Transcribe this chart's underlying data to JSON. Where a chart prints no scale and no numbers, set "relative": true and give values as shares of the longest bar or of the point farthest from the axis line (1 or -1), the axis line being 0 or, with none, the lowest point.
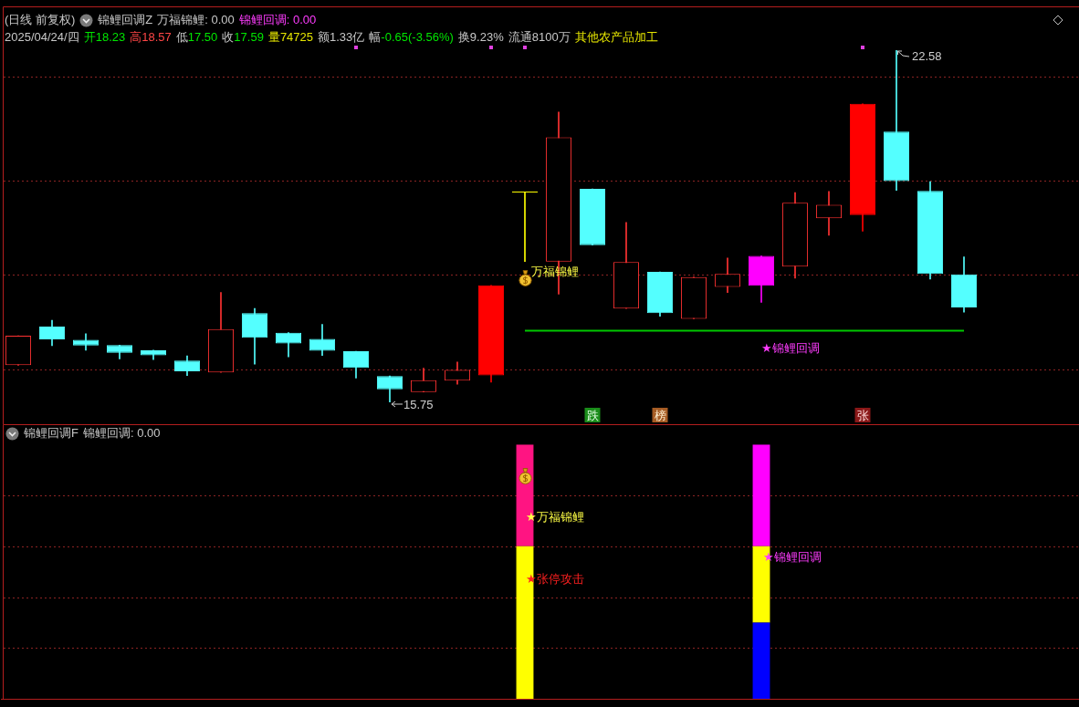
{
  "chart_data": [
    {
      "type": "candlestick",
      "title": "(日线 前复权)",
      "subtitle": "2025/04/24/四 开18.23 高18.57 低17.50 收17.59 量74725 额1.33亿 幅-0.65(-3.56%) 换9.23% 流通8100万 其他农产品加工",
      "categories": [
        null,
        null,
        null,
        null,
        null,
        null,
        null,
        null,
        null,
        null,
        null,
        null,
        null,
        null,
        null,
        null,
        null,
        null,
        null,
        null,
        null,
        null,
        null,
        null,
        null,
        null,
        null,
        null,
        null
      ],
      "ohlc": [
        [
          16.47,
          17.04,
          16.47,
          17.04
        ],
        [
          17.22,
          17.34,
          16.85,
          16.97
        ],
        [
          16.96,
          17.08,
          16.76,
          16.85
        ],
        [
          16.86,
          16.86,
          16.59,
          16.71
        ],
        [
          16.76,
          16.76,
          16.58,
          16.66
        ],
        [
          16.56,
          16.65,
          16.27,
          16.35
        ],
        [
          16.33,
          17.88,
          16.33,
          17.17
        ],
        [
          17.48,
          17.57,
          16.49,
          17.0
        ],
        [
          17.1,
          17.1,
          16.63,
          16.89
        ],
        [
          16.98,
          17.26,
          16.66,
          16.75
        ],
        [
          16.74,
          16.74,
          16.22,
          16.42
        ],
        [
          16.26,
          16.26,
          15.75,
          16.0
        ],
        [
          15.95,
          16.41,
          15.95,
          16.18
        ],
        [
          16.17,
          16.53,
          16.1,
          16.38
        ],
        [
          16.27,
          18.02,
          16.14,
          18.02
        ],
        [
          19.82,
          19.82,
          18.48,
          19.82
        ],
        [
          18.48,
          21.38,
          17.85,
          20.89
        ],
        [
          19.89,
          19.89,
          18.8,
          18.8
        ],
        [
          17.57,
          19.24,
          17.57,
          18.47
        ],
        [
          18.28,
          18.28,
          17.42,
          17.48
        ],
        [
          17.37,
          18.18,
          17.37,
          18.18
        ],
        [
          17.99,
          18.55,
          17.88,
          18.24
        ],
        [
          18.01,
          18.59,
          17.69,
          18.59
        ],
        [
          18.38,
          19.82,
          18.16,
          19.62
        ],
        [
          19.32,
          19.84,
          18.99,
          19.58
        ],
        [
          19.38,
          21.54,
          19.07,
          21.54
        ],
        [
          21.0,
          22.58,
          19.86,
          20.04
        ],
        [
          19.85,
          20.03,
          18.14,
          18.24
        ],
        [
          18.23,
          18.57,
          17.5,
          17.59
        ]
      ],
      "colors": [
        "#ff3232",
        "#54ffff",
        "#54ffff",
        "#54ffff",
        "#54ffff",
        "#54ffff",
        "#ff3232",
        "#54ffff",
        "#54ffff",
        "#54ffff",
        "#54ffff",
        "#54ffff",
        "#ff3232",
        "#ff3232",
        "#ff0000",
        "#ffff00",
        "#ff3232",
        "#54ffff",
        "#ff3232",
        "#54ffff",
        "#ff3232",
        "#ff3232",
        "#ff00ff",
        "#ff3232",
        "#ff3232",
        "#ff0000",
        "#54ffff",
        "#54ffff",
        "#54ffff"
      ],
      "series": [
        {
          "type": "line",
          "color": "#00c800",
          "values": [
            null,
            null,
            null,
            null,
            null,
            null,
            null,
            null,
            null,
            null,
            null,
            null,
            null,
            null,
            null,
            17.14,
            17.14,
            17.14,
            17.14,
            17.14,
            17.14,
            17.14,
            17.14,
            17.14,
            17.14,
            17.14,
            17.14,
            17.14,
            17.14
          ]
        }
      ],
      "yticks": [
        {
          "value": 16.39,
          "label": null
        },
        {
          "value": 18.23,
          "label": null
        },
        {
          "value": 20.05,
          "label": null
        },
        {
          "value": 22.06,
          "label": null
        }
      ],
      "grid": "y",
      "tick_labels": false,
      "annotations": [
        "锦鲤回调Z",
        "万福锦鲤: 0.00",
        "锦鲤回调: 0.00",
        "22.58",
        "15.75",
        "万福锦鲤",
        "★锦鲤回调",
        "跌",
        "榜",
        "张"
      ]
    },
    {
      "type": "bar",
      "stacked": true,
      "relative": true,
      "title": "锦鲤回调F",
      "categories": [
        null,
        null,
        null,
        null,
        null,
        null,
        null,
        null,
        null,
        null,
        null,
        null,
        null,
        null,
        null,
        null,
        null,
        null,
        null,
        null,
        null,
        null,
        null,
        null,
        null,
        null,
        null,
        null,
        null
      ],
      "series": [
        {
          "color": "#0000ff",
          "values": [
            null,
            null,
            null,
            null,
            null,
            null,
            null,
            null,
            null,
            null,
            null,
            null,
            null,
            null,
            null,
            null,
            null,
            null,
            null,
            null,
            null,
            null,
            0.3,
            null,
            null,
            null,
            null,
            null,
            null
          ]
        },
        {
          "color": "#ffff00",
          "values": [
            null,
            null,
            null,
            null,
            null,
            null,
            null,
            null,
            null,
            null,
            null,
            null,
            null,
            null,
            null,
            0.6,
            null,
            null,
            null,
            null,
            null,
            null,
            0.3,
            null,
            null,
            null,
            null,
            null,
            null
          ]
        },
        {
          "color": "#ff1482",
          "values": [
            null,
            null,
            null,
            null,
            null,
            null,
            null,
            null,
            null,
            null,
            null,
            null,
            null,
            null,
            null,
            0.4,
            null,
            null,
            null,
            null,
            null,
            null,
            null,
            null,
            null,
            null,
            null,
            null,
            null
          ]
        },
        {
          "color": "#ff00ff",
          "values": [
            null,
            null,
            null,
            null,
            null,
            null,
            null,
            null,
            null,
            null,
            null,
            null,
            null,
            null,
            null,
            null,
            null,
            null,
            null,
            null,
            null,
            null,
            0.4,
            null,
            null,
            null,
            null,
            null,
            null
          ]
        }
      ],
      "ref_lines": [
        {
          "axis": "y",
          "value": 0.2,
          "color": "#8c2323",
          "line_style": "dotted"
        },
        {
          "axis": "y",
          "value": 0.4,
          "color": "#8c2323",
          "line_style": "dotted"
        },
        {
          "axis": "y",
          "value": 0.6,
          "color": "#8c2323",
          "line_style": "dotted"
        },
        {
          "axis": "y",
          "value": 0.8,
          "color": "#8c2323",
          "line_style": "dotted"
        }
      ],
      "tick_labels": false,
      "annotations": [
        "锦鲤回调: 0.00",
        "★万福锦鲤",
        "★张停攻击",
        "★锦鲤回调"
      ]
    }
  ]
}
